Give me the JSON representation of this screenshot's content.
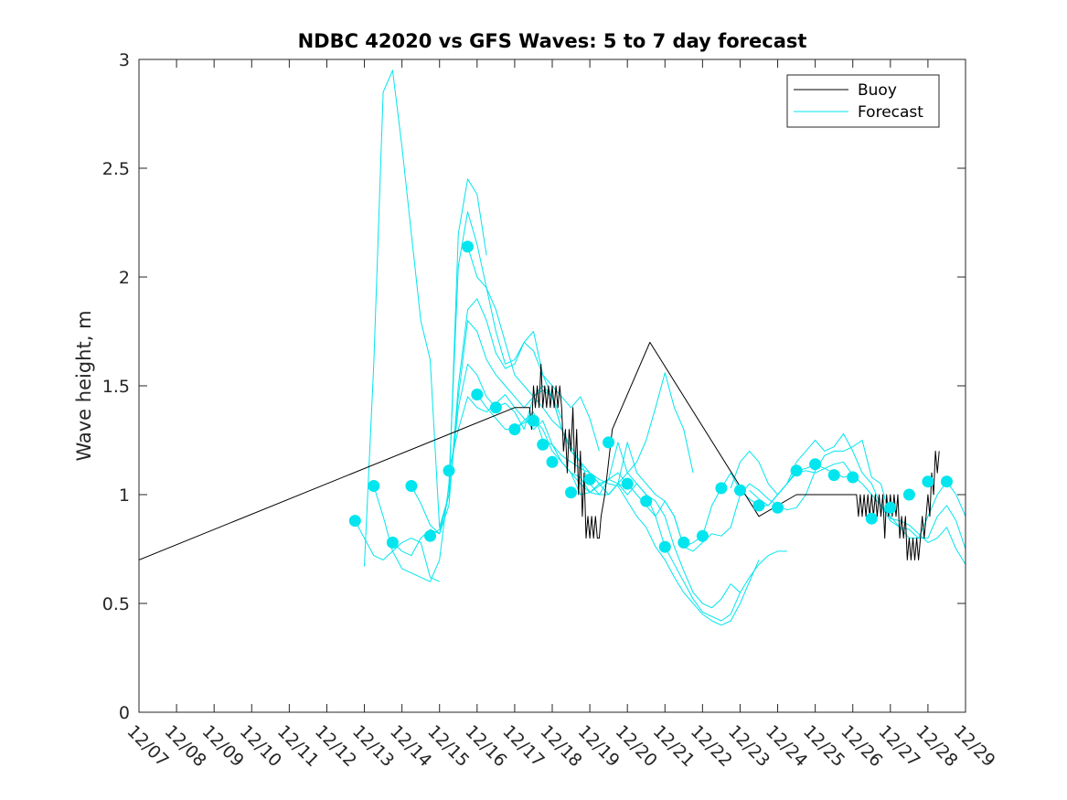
{
  "chart_data": {
    "type": "line",
    "title": "NDBC 42020 vs GFS Waves: 5 to 7 day forecast",
    "xlabel": "",
    "ylabel": "Wave height, m",
    "xlim": [
      0,
      22
    ],
    "ylim": [
      0,
      3
    ],
    "x_unit": "days since 12/07",
    "x_tick_values": [
      0,
      1,
      2,
      3,
      4,
      5,
      6,
      7,
      8,
      9,
      10,
      11,
      12,
      13,
      14,
      15,
      16,
      17,
      18,
      19,
      20,
      21,
      22
    ],
    "x_tick_labels": [
      "12/07",
      "12/08",
      "12/09",
      "12/10",
      "12/11",
      "12/12",
      "12/13",
      "12/14",
      "12/15",
      "12/16",
      "12/17",
      "12/18",
      "12/19",
      "12/20",
      "12/21",
      "12/22",
      "12/23",
      "12/24",
      "12/25",
      "12/26",
      "12/27",
      "12/28",
      "12/29"
    ],
    "y_tick_values": [
      0,
      0.5,
      1,
      1.5,
      2,
      2.5,
      3
    ],
    "y_tick_labels": [
      "0",
      "0.5",
      "1",
      "1.5",
      "2",
      "2.5",
      "3"
    ],
    "legend": {
      "location": "top-right",
      "entries": [
        {
          "label": "Buoy",
          "color": "#000000"
        },
        {
          "label": "Forecast",
          "color": "#00e5ee"
        }
      ]
    },
    "colors": {
      "buoy": "#000000",
      "forecast": "#00e5ee",
      "axes": "#262626"
    },
    "series": [
      {
        "name": "Buoy",
        "color": "#000000",
        "x": [
          0.0,
          10.0,
          10.2,
          10.4,
          10.45,
          10.5,
          10.55,
          10.6,
          10.65,
          10.7,
          10.75,
          10.8,
          10.85,
          10.9,
          10.95,
          11.0,
          11.05,
          11.1,
          11.15,
          11.2,
          11.25,
          11.3,
          11.35,
          11.4,
          11.45,
          11.5,
          11.55,
          11.6,
          11.65,
          11.7,
          11.75,
          11.8,
          11.85,
          11.9,
          11.95,
          12.0,
          12.05,
          12.1,
          12.15,
          12.2,
          12.25,
          12.3,
          12.4,
          12.6,
          13.6,
          16.5,
          17.5,
          19.1,
          19.15,
          19.2,
          19.25,
          19.3,
          19.35,
          19.4,
          19.45,
          19.5,
          19.55,
          19.6,
          19.65,
          19.7,
          19.75,
          19.8,
          19.85,
          19.9,
          19.95,
          20.0,
          20.05,
          20.1,
          20.15,
          20.2,
          20.25,
          20.3,
          20.35,
          20.4,
          20.45,
          20.5,
          20.55,
          20.6,
          20.65,
          20.7,
          20.75,
          20.8,
          20.85,
          20.9,
          20.95,
          21.0,
          21.05,
          21.1,
          21.15,
          21.2,
          21.25,
          21.3
        ],
        "y": [
          0.7,
          1.4,
          1.4,
          1.4,
          1.3,
          1.5,
          1.4,
          1.5,
          1.4,
          1.6,
          1.4,
          1.5,
          1.4,
          1.5,
          1.4,
          1.5,
          1.4,
          1.5,
          1.4,
          1.5,
          1.4,
          1.2,
          1.3,
          1.1,
          1.3,
          1.2,
          1.4,
          1.1,
          1.3,
          1.0,
          1.2,
          0.9,
          1.1,
          0.8,
          0.9,
          0.8,
          0.9,
          0.8,
          0.9,
          0.8,
          0.8,
          0.9,
          1.0,
          1.3,
          1.7,
          0.9,
          1.0,
          1.0,
          0.9,
          1.0,
          0.9,
          1.0,
          0.9,
          1.0,
          0.9,
          1.0,
          0.9,
          1.0,
          0.9,
          1.0,
          0.9,
          1.0,
          0.8,
          1.0,
          0.9,
          1.0,
          0.9,
          1.0,
          0.9,
          1.0,
          0.8,
          0.9,
          0.8,
          0.9,
          0.7,
          0.8,
          0.7,
          0.8,
          0.7,
          0.8,
          0.7,
          0.8,
          0.9,
          0.8,
          0.9,
          1.0,
          0.9,
          1.1,
          1.0,
          1.2,
          1.1,
          1.2
        ]
      },
      {
        "name": "Forecast",
        "color": "#00e5ee",
        "x": [
          5.75,
          6.0,
          6.25,
          6.5,
          6.75,
          7.0,
          7.25,
          7.5,
          7.75,
          8.0
        ],
        "y": [
          0.88,
          0.8,
          0.72,
          0.7,
          0.74,
          0.78,
          0.8,
          0.78,
          0.62,
          0.6
        ]
      },
      {
        "name": "Forecast",
        "color": "#00e5ee",
        "x": [
          6.0,
          6.25,
          6.5,
          6.75,
          7.0,
          7.25,
          7.5,
          7.75,
          8.0,
          8.25,
          8.5,
          8.75,
          9.0,
          9.25
        ],
        "y": [
          0.67,
          1.6,
          2.85,
          2.95,
          2.6,
          2.2,
          1.8,
          1.62,
          0.85,
          1.0,
          2.2,
          2.45,
          2.38,
          2.1
        ]
      },
      {
        "name": "Forecast",
        "color": "#00e5ee",
        "x": [
          6.25,
          6.5,
          6.75,
          7.0,
          7.25,
          7.5,
          7.75,
          8.0,
          8.25,
          8.5,
          8.75,
          9.0,
          9.25,
          9.5,
          9.75,
          10.0,
          10.25,
          10.5,
          10.75,
          11.0,
          11.25
        ],
        "y": [
          1.04,
          0.9,
          0.74,
          0.66,
          0.64,
          0.62,
          0.6,
          0.7,
          1.05,
          2.05,
          2.3,
          2.15,
          1.95,
          1.75,
          1.6,
          1.62,
          1.7,
          1.66,
          1.55,
          1.45,
          1.35
        ]
      },
      {
        "name": "Forecast",
        "color": "#00e5ee",
        "x": [
          6.75,
          7.0,
          7.25,
          7.5,
          7.75,
          8.0,
          8.25,
          8.5,
          8.75,
          9.0,
          9.25,
          9.5,
          9.75,
          10.0,
          10.25,
          10.5,
          10.75,
          11.0,
          11.25,
          11.5,
          11.75,
          12.0,
          12.25
        ],
        "y": [
          0.78,
          0.74,
          0.72,
          0.8,
          0.84,
          0.82,
          0.95,
          1.5,
          1.85,
          1.9,
          1.8,
          1.65,
          1.58,
          1.6,
          1.7,
          1.75,
          1.55,
          1.5,
          1.45,
          1.4,
          1.45,
          1.35,
          1.2
        ]
      },
      {
        "name": "Forecast",
        "color": "#00e5ee",
        "x": [
          7.25,
          7.5,
          7.75,
          8.0,
          8.25,
          8.5,
          8.75,
          9.0,
          9.25,
          9.5,
          9.75,
          10.0,
          10.25,
          10.5,
          10.75,
          11.0,
          11.25,
          11.5,
          11.75,
          12.0,
          12.25,
          12.5,
          12.75,
          13.0
        ],
        "y": [
          1.04,
          0.96,
          0.86,
          0.82,
          1.0,
          1.45,
          1.8,
          1.75,
          1.62,
          1.55,
          1.5,
          1.45,
          1.4,
          1.45,
          1.48,
          1.45,
          1.3,
          1.2,
          1.15,
          1.1,
          1.05,
          1.0,
          1.05,
          1.03
        ]
      },
      {
        "name": "Forecast",
        "color": "#00e5ee",
        "x": [
          7.75,
          8.0,
          8.25,
          8.5,
          8.75,
          9.0,
          9.25,
          9.5,
          9.75,
          10.0,
          10.25,
          10.5,
          10.75,
          11.0,
          11.25,
          11.5,
          11.75,
          12.0,
          12.25,
          12.5,
          12.75,
          13.0,
          13.25,
          13.5,
          13.75,
          14.0,
          14.25,
          14.5,
          14.75
        ],
        "y": [
          0.81,
          0.84,
          1.0,
          1.4,
          1.6,
          1.55,
          1.45,
          1.4,
          1.42,
          1.38,
          1.3,
          1.45,
          1.5,
          1.45,
          1.3,
          1.2,
          1.15,
          1.05,
          1.0,
          1.0,
          1.05,
          1.1,
          1.15,
          1.25,
          1.4,
          1.56,
          1.4,
          1.3,
          1.1
        ]
      },
      {
        "name": "Forecast",
        "color": "#00e5ee",
        "x": [
          8.25,
          8.5,
          8.75,
          9.0,
          9.25,
          9.5,
          9.75,
          10.0,
          10.25,
          10.5,
          10.75,
          11.0,
          11.25,
          11.5,
          11.75,
          12.0,
          12.25,
          12.5,
          12.75,
          13.0,
          13.25,
          13.5,
          13.75,
          14.0,
          14.25,
          14.5,
          14.75,
          15.0,
          15.25,
          15.5,
          15.75,
          16.0
        ],
        "y": [
          1.11,
          1.3,
          1.45,
          1.4,
          1.38,
          1.42,
          1.46,
          1.4,
          1.35,
          1.3,
          1.34,
          1.23,
          1.15,
          1.1,
          1.0,
          1.01,
          1.05,
          1.07,
          1.24,
          1.1,
          1.05,
          1.0,
          0.97,
          0.9,
          0.76,
          0.65,
          0.55,
          0.5,
          0.48,
          0.52,
          0.59,
          0.55
        ]
      },
      {
        "name": "Forecast",
        "color": "#00e5ee",
        "x": [
          8.75,
          9.0,
          9.25,
          9.5,
          9.75,
          10.0,
          10.25,
          10.5,
          10.75,
          11.0,
          11.25,
          11.5,
          11.75,
          12.0,
          12.25,
          12.5,
          12.75,
          13.0,
          13.25,
          13.5,
          13.75,
          14.0,
          14.25,
          14.5,
          14.75,
          15.0,
          15.25,
          15.5,
          15.75,
          16.0,
          16.25,
          16.5
        ],
        "y": [
          2.14,
          2.0,
          1.95,
          1.85,
          1.7,
          1.55,
          1.5,
          1.45,
          1.4,
          1.34,
          1.3,
          1.22,
          1.15,
          1.1,
          1.07,
          1.05,
          1.04,
          0.97,
          0.9,
          0.85,
          0.76,
          0.7,
          0.62,
          0.55,
          0.5,
          0.45,
          0.42,
          0.4,
          0.42,
          0.5,
          0.6,
          0.7
        ]
      },
      {
        "name": "Forecast",
        "color": "#00e5ee",
        "x": [
          9.0,
          9.25,
          9.5,
          9.75,
          10.0,
          10.25,
          10.5,
          10.75,
          11.0,
          11.25,
          11.5,
          11.75,
          12.0,
          12.25,
          12.5,
          12.75,
          13.0,
          13.25,
          13.5,
          13.75,
          14.0,
          14.25,
          14.5,
          14.75,
          15.0,
          15.25,
          15.5,
          15.75,
          16.0,
          16.25,
          16.5,
          16.75,
          17.0,
          17.25
        ],
        "y": [
          1.46,
          1.4,
          1.35,
          1.3,
          1.3,
          1.33,
          1.35,
          1.3,
          1.2,
          1.15,
          1.1,
          1.08,
          1.01,
          1.04,
          1.07,
          1.1,
          1.05,
          1.0,
          0.95,
          0.9,
          0.76,
          0.68,
          0.6,
          0.52,
          0.46,
          0.44,
          0.42,
          0.45,
          0.55,
          0.62,
          0.68,
          0.72,
          0.74,
          0.74
        ]
      },
      {
        "name": "Forecast",
        "color": "#00e5ee",
        "x": [
          10.0,
          10.25,
          10.5,
          10.75,
          11.0,
          11.25,
          11.5,
          11.75,
          12.0,
          12.25,
          12.5,
          12.75,
          13.0,
          13.25,
          13.5,
          13.75,
          14.0,
          14.25,
          14.5,
          14.75,
          15.0,
          15.25,
          15.5,
          15.75,
          16.0,
          16.25,
          16.5,
          16.75,
          17.0,
          17.25,
          17.5
        ],
        "y": [
          1.3,
          1.34,
          1.38,
          1.25,
          1.23,
          1.18,
          1.15,
          1.12,
          1.1,
          1.05,
          1.0,
          1.05,
          1.24,
          1.1,
          1.05,
          1.0,
          0.97,
          0.9,
          0.76,
          0.74,
          0.78,
          0.82,
          0.81,
          0.85,
          1.0,
          1.05,
          1.02,
          0.98,
          0.95,
          0.93,
          0.94
        ]
      },
      {
        "name": "Forecast",
        "color": "#00e5ee",
        "x": [
          11.25,
          11.5,
          11.75,
          12.0,
          12.25,
          12.5,
          12.75,
          13.0,
          13.25,
          13.5,
          13.75,
          14.0,
          14.25,
          14.5,
          14.75,
          15.0,
          15.25,
          15.5,
          15.75,
          16.0,
          16.25,
          16.5,
          16.75,
          17.0,
          17.25,
          17.5,
          17.75,
          18.0,
          18.25,
          18.5,
          18.75,
          19.0
        ],
        "y": [
          1.15,
          1.1,
          1.05,
          1.01,
          1.0,
          1.07,
          1.05,
          1.0,
          1.05,
          1.0,
          0.9,
          0.97,
          0.9,
          0.76,
          0.78,
          0.81,
          0.95,
          1.03,
          1.1,
          1.02,
          0.98,
          0.95,
          0.95,
          1.0,
          1.05,
          1.11,
          1.12,
          1.14,
          1.12,
          1.1,
          1.08,
          1.09
        ]
      },
      {
        "name": "Forecast",
        "color": "#00e5ee",
        "x": [
          15.75,
          16.0,
          16.25,
          16.5,
          16.75,
          17.0,
          17.25,
          17.5,
          17.75,
          18.0,
          18.25,
          18.5,
          18.75,
          19.0,
          19.25,
          19.5,
          19.75,
          20.0,
          20.25,
          20.5,
          20.75,
          21.0,
          21.25,
          21.5,
          21.75,
          22.0
        ],
        "y": [
          1.03,
          1.15,
          1.2,
          1.15,
          1.05,
          1.0,
          1.05,
          1.15,
          1.2,
          1.25,
          1.2,
          1.22,
          1.28,
          1.2,
          1.1,
          1.05,
          0.95,
          0.9,
          0.85,
          0.8,
          0.8,
          0.9,
          1.0,
          1.06,
          1.0,
          0.9
        ]
      },
      {
        "name": "Forecast",
        "color": "#00e5ee",
        "x": [
          16.25,
          16.5,
          16.75,
          17.0,
          17.25,
          17.5,
          17.75,
          18.0,
          18.25,
          18.5,
          18.75,
          19.0,
          19.25,
          19.5,
          19.75,
          20.0,
          20.25,
          20.5,
          20.75,
          21.0,
          21.25,
          21.5,
          21.75,
          22.0
        ],
        "y": [
          1.02,
          0.98,
          0.95,
          1.0,
          1.05,
          1.1,
          1.11,
          1.1,
          1.12,
          1.14,
          1.15,
          1.09,
          1.05,
          1.0,
          0.95,
          0.88,
          0.85,
          0.84,
          0.8,
          0.8,
          0.9,
          0.95,
          0.88,
          0.75
        ]
      },
      {
        "name": "Forecast",
        "color": "#00e5ee",
        "x": [
          17.5,
          17.75,
          18.0,
          18.25,
          18.5,
          18.75,
          19.0,
          19.25,
          19.5,
          19.75,
          20.0,
          20.25,
          20.5,
          20.75,
          21.0,
          21.25,
          21.5,
          21.75,
          22.0
        ],
        "y": [
          0.94,
          1.0,
          1.11,
          1.18,
          1.2,
          1.2,
          1.22,
          1.25,
          1.08,
          1.05,
          0.89,
          0.88,
          0.86,
          0.82,
          0.78,
          0.8,
          0.85,
          0.75,
          0.68
        ]
      }
    ],
    "markers": {
      "name": "Forecast",
      "color": "#00e5ee",
      "x": [
        5.75,
        6.25,
        6.75,
        7.25,
        7.75,
        8.25,
        8.75,
        9.0,
        9.5,
        10.0,
        10.5,
        10.75,
        11.0,
        11.5,
        12.0,
        12.5,
        13.0,
        13.5,
        14.0,
        14.5,
        15.0,
        15.5,
        16.0,
        16.5,
        17.0,
        17.5,
        18.0,
        18.5,
        19.0,
        19.5,
        20.0,
        20.5,
        21.0,
        21.5
      ],
      "y": [
        0.88,
        1.04,
        0.78,
        1.04,
        0.81,
        1.11,
        2.14,
        1.46,
        1.4,
        1.3,
        1.34,
        1.23,
        1.15,
        1.01,
        1.07,
        1.24,
        1.05,
        0.97,
        0.76,
        0.78,
        0.81,
        1.03,
        1.02,
        0.95,
        0.94,
        1.11,
        1.14,
        1.09,
        1.08,
        0.89,
        0.94,
        1.0,
        1.06,
        1.06
      ]
    }
  }
}
